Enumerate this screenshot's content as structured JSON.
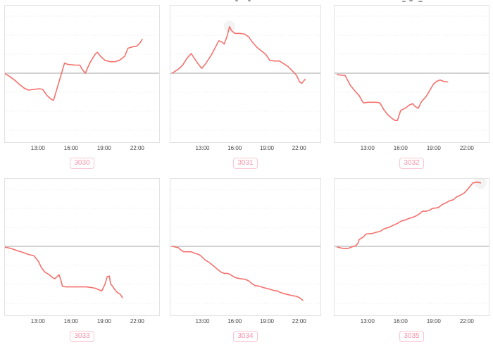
{
  "page": {
    "background": "#ffffff"
  },
  "colors": {
    "line": "#f4706d",
    "baseline": "#c2c2c2",
    "grid": "#ececec",
    "plot_border": "#e2e2e2",
    "tick_text": "#444444",
    "badge_text": "#f693ac",
    "badge_border": "#f9c6d2",
    "highlight_halo": "#f3f3f3",
    "title_fragment": "#9a9a9a"
  },
  "x_axis": {
    "t_min": 9.95,
    "t_max": 24.05,
    "tick_hours": [
      13,
      16,
      19,
      22
    ],
    "tick_labels": [
      "13:00",
      "16:00",
      "19:00",
      "22:00"
    ]
  },
  "y_axis": {
    "labels_visible": false,
    "baseline_value": 0,
    "note": "no y tick labels shown; values relative to gray baseline, 1.0 = plot top"
  },
  "chart_data": [
    {
      "type": "line",
      "label": "3030",
      "highlight_t": null,
      "x_hours": [
        9.9,
        10.4,
        10.9,
        11.3,
        11.7,
        12.1,
        12.6,
        13.1,
        13.4,
        13.8,
        14.2,
        14.4,
        15.4,
        15.7,
        16.4,
        16.8,
        17.0,
        17.3,
        17.7,
        18.2,
        18.4,
        18.7,
        19.1,
        19.6,
        20.0,
        20.4,
        20.9,
        21.2,
        21.6,
        22.0,
        22.3,
        22.5
      ],
      "values": [
        0,
        -0.05,
        -0.11,
        -0.17,
        -0.22,
        -0.25,
        -0.24,
        -0.23,
        -0.24,
        -0.33,
        -0.39,
        -0.4,
        0.15,
        0.13,
        0.12,
        0.12,
        0.06,
        0,
        0.15,
        0.28,
        0.31,
        0.25,
        0.19,
        0.17,
        0.17,
        0.19,
        0.25,
        0.37,
        0.39,
        0.4,
        0.45,
        0.5
      ]
    },
    {
      "type": "line",
      "label": "3031",
      "highlight_t": 15.5,
      "x_hours": [
        10.1,
        10.7,
        11.1,
        11.5,
        11.9,
        12.2,
        12.5,
        12.8,
        12.9,
        13.3,
        13.8,
        14.4,
        14.5,
        14.8,
        15.0,
        15.3,
        15.5,
        15.7,
        16.0,
        16.5,
        16.9,
        17.3,
        17.6,
        18.1,
        18.5,
        18.9,
        19.3,
        19.8,
        20.2,
        20.6,
        21.0,
        21.5,
        21.8,
        22.1,
        22.3,
        22.6
      ],
      "values": [
        0,
        0.06,
        0.12,
        0.22,
        0.29,
        0.22,
        0.15,
        0.09,
        0.07,
        0.15,
        0.27,
        0.45,
        0.48,
        0.46,
        0.43,
        0.56,
        0.69,
        0.63,
        0.59,
        0.59,
        0.58,
        0.54,
        0.47,
        0.38,
        0.33,
        0.28,
        0.19,
        0.18,
        0.18,
        0.14,
        0.1,
        0.02,
        -0.03,
        -0.13,
        -0.15,
        -0.09
      ]
    },
    {
      "type": "line",
      "label": "3032",
      "highlight_t": null,
      "x_hours": [
        10.2,
        10.6,
        10.9,
        11.1,
        11.4,
        11.9,
        12.2,
        12.4,
        12.6,
        13.0,
        13.4,
        13.8,
        14.1,
        14.5,
        14.8,
        15.2,
        15.5,
        15.7,
        16.0,
        16.4,
        16.8,
        17.1,
        17.3,
        17.6,
        17.9,
        18.3,
        18.6,
        19.0,
        19.3,
        19.6,
        19.9,
        20.3
      ],
      "values": [
        -0.02,
        -0.03,
        -0.03,
        -0.09,
        -0.18,
        -0.28,
        -0.33,
        -0.39,
        -0.44,
        -0.43,
        -0.43,
        -0.43,
        -0.44,
        -0.55,
        -0.61,
        -0.67,
        -0.7,
        -0.7,
        -0.55,
        -0.52,
        -0.47,
        -0.45,
        -0.49,
        -0.52,
        -0.42,
        -0.35,
        -0.27,
        -0.16,
        -0.12,
        -0.1,
        -0.12,
        -0.13
      ]
    },
    {
      "type": "line",
      "label": "3033",
      "highlight_t": null,
      "x_hours": [
        9.9,
        10.5,
        11.0,
        11.6,
        12.1,
        12.6,
        12.8,
        13.0,
        13.3,
        13.6,
        14.0,
        14.3,
        14.5,
        14.7,
        14.9,
        15.1,
        15.2,
        15.5,
        16.1,
        16.8,
        17.4,
        17.9,
        18.2,
        18.5,
        18.8,
        19.1,
        19.3,
        19.5,
        19.6,
        20.0,
        20.2,
        20.5,
        20.7
      ],
      "values": [
        -0.01,
        -0.03,
        -0.06,
        -0.09,
        -0.12,
        -0.14,
        -0.18,
        -0.22,
        -0.32,
        -0.38,
        -0.42,
        -0.46,
        -0.48,
        -0.45,
        -0.42,
        -0.52,
        -0.59,
        -0.6,
        -0.6,
        -0.6,
        -0.6,
        -0.61,
        -0.62,
        -0.64,
        -0.66,
        -0.56,
        -0.45,
        -0.44,
        -0.55,
        -0.64,
        -0.68,
        -0.71,
        -0.76
      ]
    },
    {
      "type": "line",
      "label": "3034",
      "highlight_t": null,
      "x_hours": [
        10.1,
        10.7,
        10.9,
        11.2,
        11.5,
        11.9,
        12.2,
        12.6,
        12.8,
        13.2,
        13.6,
        14.0,
        14.3,
        14.7,
        15.0,
        15.3,
        15.5,
        15.9,
        16.2,
        16.6,
        17.0,
        17.3,
        17.6,
        17.9,
        18.3,
        18.7,
        19.2,
        19.6,
        20.0,
        20.4,
        20.9,
        21.4,
        21.8,
        22.1,
        22.4
      ],
      "values": [
        0,
        -0.02,
        -0.05,
        -0.08,
        -0.08,
        -0.08,
        -0.1,
        -0.12,
        -0.14,
        -0.2,
        -0.24,
        -0.29,
        -0.33,
        -0.38,
        -0.4,
        -0.4,
        -0.41,
        -0.45,
        -0.47,
        -0.48,
        -0.49,
        -0.51,
        -0.55,
        -0.58,
        -0.59,
        -0.61,
        -0.63,
        -0.65,
        -0.66,
        -0.69,
        -0.71,
        -0.73,
        -0.74,
        -0.76,
        -0.8
      ]
    },
    {
      "type": "line",
      "label": "3035",
      "highlight_t": 23.3,
      "x_hours": [
        10.2,
        10.7,
        11.2,
        11.5,
        11.9,
        12.1,
        12.2,
        12.6,
        12.8,
        13.2,
        13.4,
        13.8,
        14.1,
        14.5,
        14.9,
        15.3,
        15.7,
        16.0,
        16.4,
        16.7,
        17.1,
        17.4,
        17.7,
        18.0,
        18.3,
        18.6,
        18.9,
        19.3,
        19.5,
        19.8,
        20.2,
        20.4,
        20.8,
        21.1,
        21.5,
        21.8,
        22.1,
        22.4,
        22.6,
        23.0,
        23.3
      ],
      "values": [
        -0.01,
        -0.03,
        -0.03,
        -0.01,
        0.01,
        0.05,
        0.1,
        0.14,
        0.18,
        0.19,
        0.19,
        0.21,
        0.22,
        0.26,
        0.28,
        0.31,
        0.34,
        0.37,
        0.39,
        0.41,
        0.43,
        0.45,
        0.48,
        0.52,
        0.52,
        0.53,
        0.56,
        0.57,
        0.58,
        0.62,
        0.65,
        0.67,
        0.69,
        0.73,
        0.76,
        0.79,
        0.84,
        0.9,
        0.94,
        0.95,
        0.94
      ]
    }
  ]
}
